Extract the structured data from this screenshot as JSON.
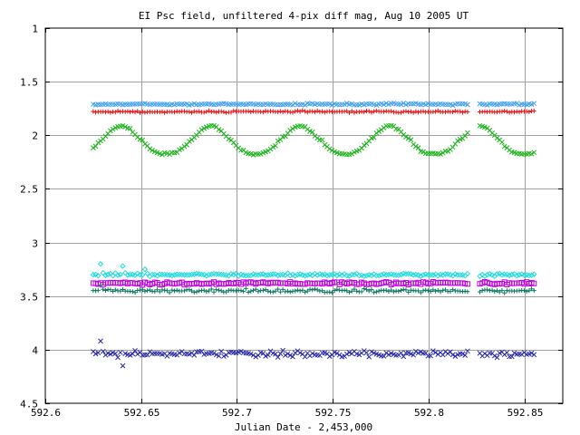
{
  "chart_data": {
    "type": "scatter",
    "title": "EI Psc field, unfiltered 4-pix diff mag, Aug 10 2005 UT",
    "xlabel": "Julian Date - 2,453,000",
    "ylabel": "",
    "xlim": [
      592.6,
      592.87
    ],
    "ylim": [
      4.5,
      1
    ],
    "y_inverted": true,
    "grid": true,
    "legend": "none",
    "x_ticks": [
      "592.6",
      "592.65",
      "592.7",
      "592.75",
      "592.8",
      "592.85"
    ],
    "x_tick_values": [
      592.6,
      592.65,
      592.7,
      592.75,
      592.8,
      592.85
    ],
    "y_ticks": [
      "1",
      "1.5",
      "2",
      "2.5",
      "3",
      "3.5",
      "4",
      "4.5"
    ],
    "y_tick_values": [
      1,
      1.5,
      2,
      2.5,
      3,
      3.5,
      4,
      4.5
    ],
    "x_range": [
      592.625,
      592.855
    ],
    "gap": [
      592.821,
      592.826
    ],
    "series": [
      {
        "marker": "x",
        "color": "#3f9fef",
        "level": 1.71,
        "noise": 0.012,
        "spikes": []
      },
      {
        "marker": "+",
        "color": "#e8161a",
        "level": 1.78,
        "noise": 0.012,
        "spikes": []
      },
      {
        "marker": "x",
        "color": "#18b418",
        "level": 2.05,
        "noise": 0.015,
        "periodic": {
          "amp": 0.14,
          "period": 0.0467,
          "phase": -0.4
        }
      },
      {
        "marker": "diamond",
        "color": "#20dcdc",
        "level": 3.3,
        "noise": 0.02,
        "spikes": [
          3.2,
          3.22,
          3.25
        ]
      },
      {
        "marker": "square",
        "color": "#c000e0",
        "level": 3.38,
        "noise": 0.02,
        "spikes": []
      },
      {
        "marker": "+",
        "color": "#107860",
        "level": 3.45,
        "noise": 0.025,
        "spikes": [
          3.4
        ]
      },
      {
        "marker": "x",
        "color": "#2828a8",
        "level": 4.04,
        "noise": 0.04,
        "spikes": [
          3.92,
          4.15
        ]
      }
    ]
  }
}
